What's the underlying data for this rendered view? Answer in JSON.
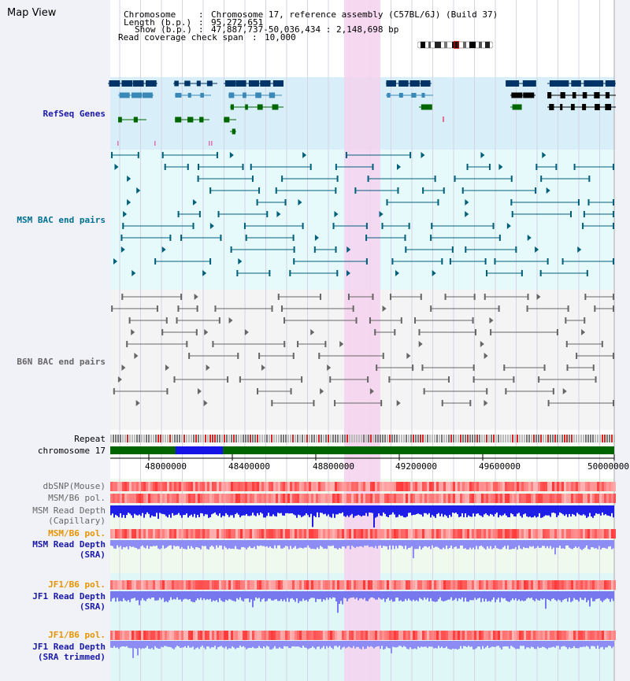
{
  "page": {
    "title": "Map View"
  },
  "header": {
    "chromosome_key": "Chromosome",
    "chromosome_value": "Chromosome 17, reference assembly (C57BL/6J) (Build 37)",
    "length_key": "Length (b.p.)",
    "length_value": "95,272,651",
    "show_key": "Show (b.p.)",
    "show_value": "47,887,737-50,036,434 : 2,148,698 bp",
    "span_key": "Read coverage check span",
    "span_value": "10,000"
  },
  "tracks": {
    "refseq": "RefSeq Genes",
    "msm_bac": "MSM BAC end pairs",
    "b6n_bac": "B6N BAC end pairs",
    "repeat": "Repeat",
    "chromosome": "chromosome 17",
    "dbsnp": "dbSNP(Mouse)",
    "msm_b6_pol_1": "MSM/B6 pol.",
    "msm_depth_cap_1": "MSM Read Depth",
    "msm_depth_cap_2": "(Capillary)",
    "msm_b6_pol_2": "MSM/B6 pol.",
    "msm_depth_sra_1": "MSM Read Depth",
    "msm_depth_sra_2": "(SRA)",
    "jf1_b6_pol_1": "JF1/B6 pol.",
    "jf1_depth_sra_1": "JF1 Read Depth",
    "jf1_depth_sra_2": "(SRA)",
    "jf1_b6_pol_2": "JF1/B6 pol.",
    "jf1_depth_trim_1": "JF1 Read Depth",
    "jf1_depth_trim_2": "(SRA trimmed)"
  },
  "axis": {
    "ticks": [
      "48000000",
      "48400000",
      "48800000",
      "49200000",
      "49600000",
      "50000000"
    ]
  },
  "colors": {
    "refseq_dark": "#003366",
    "refseq_mid": "#3a88b8",
    "refseq_green": "#006600",
    "msm_line": "#005f7a",
    "b6n_line": "#666666",
    "highlight": "#f5d2ee",
    "chrom_green": "#006400",
    "chrom_blue": "#1414e6"
  }
}
